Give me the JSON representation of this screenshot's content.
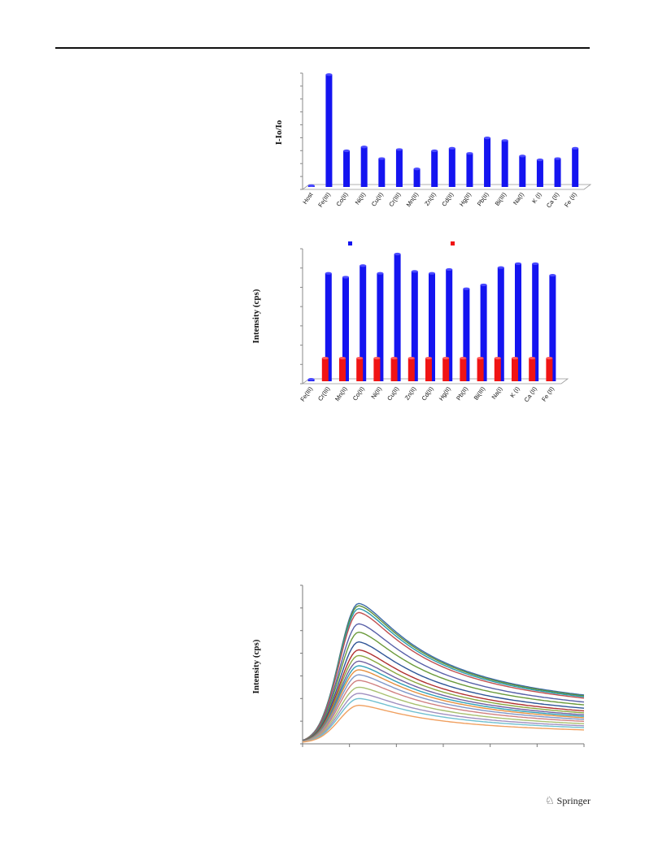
{
  "publisher": "Springer",
  "charts": [
    {
      "type": "bar",
      "ylabel": "I-Io/Io",
      "categories": [
        "Host",
        "Fe(III)",
        "Co(II)",
        "Ni(II)",
        "Cu(II)",
        "Cr(III)",
        "Mn(II)",
        "Zn(II)",
        "Cd(II)",
        "Hg(II)",
        "Pb(II)",
        "Bi(III)",
        "Na(I)",
        "K (I)",
        "Ca (II)",
        "Fe (II)"
      ],
      "values": [
        0.1,
        8.7,
        2.8,
        3.1,
        2.2,
        2.9,
        1.4,
        2.8,
        3.0,
        2.6,
        3.8,
        3.6,
        2.4,
        2.1,
        2.2,
        3.0
      ],
      "ylim": [
        0,
        9
      ],
      "color": "#1414f0"
    },
    {
      "type": "bar",
      "ylabel": "Intensity (cps)",
      "categories": [
        "Fe(III)",
        "Cr(III)",
        "Mn(II)",
        "Co(II)",
        "Ni(II)",
        "Cu(II)",
        "Zn(II)",
        "Cd(II)",
        "Hg(II)",
        "Pb(II)",
        "Bi(III)",
        "Na(I)",
        "K (I)",
        "Ca (II)",
        "Fe (II)"
      ],
      "series": [
        {
          "values": [
            0.1,
            5.6,
            5.4,
            6.0,
            5.6,
            6.6,
            5.7,
            5.6,
            5.8,
            4.8,
            5.0,
            5.9,
            6.1,
            6.1,
            5.5
          ],
          "color": "#1414f0"
        },
        {
          "values": [
            0,
            1.2,
            1.2,
            1.2,
            1.2,
            1.2,
            1.2,
            1.2,
            1.2,
            1.2,
            1.2,
            1.2,
            1.2,
            1.2,
            1.2
          ],
          "color": "#f01414"
        }
      ],
      "ylim": [
        0,
        7
      ]
    },
    {
      "type": "line",
      "ylabel": "Intensity (cps)",
      "x_range": [
        0,
        60
      ],
      "ylim": [
        0,
        7
      ],
      "peak_x": 12,
      "peaks": [
        6.15,
        6.05,
        5.92,
        5.75,
        5.25,
        4.88,
        4.45,
        4.1,
        3.85,
        3.6,
        3.4,
        3.22,
        3.0,
        2.75,
        2.45,
        2.18,
        1.95,
        1.65
      ],
      "colors": [
        "#3b6aa8",
        "#5f8f3a",
        "#2a9cb0",
        "#c05050",
        "#5860a8",
        "#6a9a3a",
        "#2f5597",
        "#b03030",
        "#8aa840",
        "#7060a0",
        "#30a0b8",
        "#e59040",
        "#8098c8",
        "#d08080",
        "#a8c070",
        "#a090c0",
        "#70c0d0",
        "#f0a060"
      ]
    }
  ]
}
